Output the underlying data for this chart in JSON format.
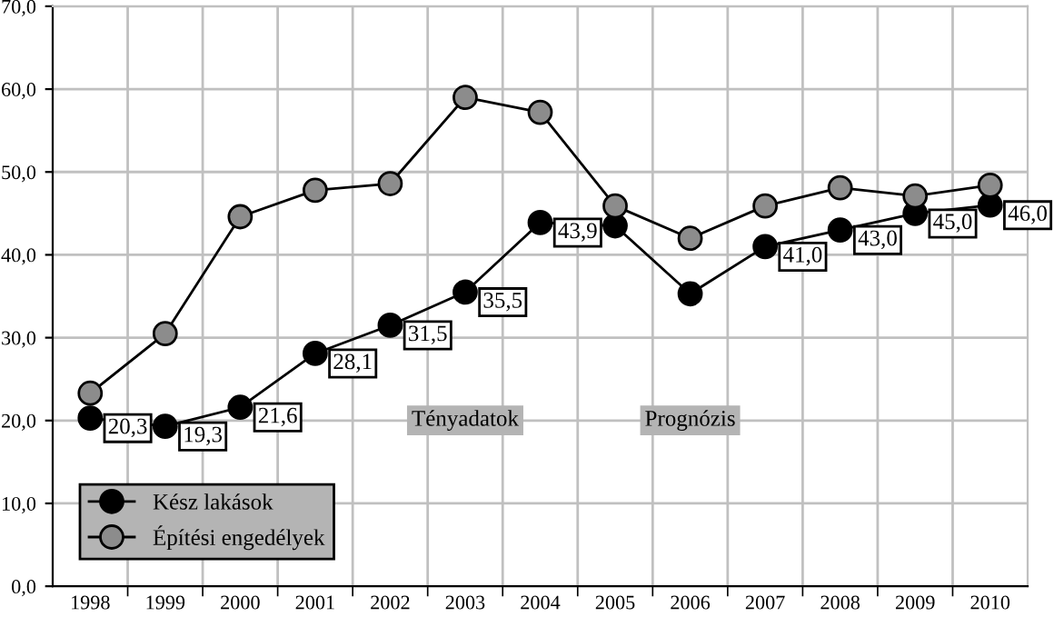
{
  "chart_data": {
    "type": "line",
    "categories": [
      "1998",
      "1999",
      "2000",
      "2001",
      "2002",
      "2003",
      "2004",
      "2005",
      "2006",
      "2007",
      "2008",
      "2009",
      "2010"
    ],
    "series": [
      {
        "name": "Kész lakások",
        "color": "#000000",
        "values": [
          20.3,
          19.3,
          21.6,
          28.1,
          31.5,
          35.5,
          43.9,
          43.5,
          35.3,
          41.0,
          43.0,
          45.0,
          46.0
        ],
        "value_labels": [
          "20,3",
          "19,3",
          "21,6",
          "28,1",
          "31,5",
          "35,5",
          "43,9",
          null,
          null,
          "41,0",
          "43,0",
          "45,0",
          "46,0"
        ]
      },
      {
        "name": "Építési engedélyek",
        "color": "#8c8c8c",
        "values": [
          23.3,
          30.5,
          44.6,
          47.8,
          48.6,
          59.0,
          57.2,
          45.9,
          42.0,
          45.9,
          48.1,
          47.1,
          48.4
        ]
      }
    ],
    "ylim": [
      0,
      70
    ],
    "yticks": [
      {
        "value": 0,
        "label": "0,0"
      },
      {
        "value": 10,
        "label": "10,0"
      },
      {
        "value": 20,
        "label": "20,0"
      },
      {
        "value": 30,
        "label": "30,0"
      },
      {
        "value": 40,
        "label": "40,0"
      },
      {
        "value": 50,
        "label": "50,0"
      },
      {
        "value": 60,
        "label": "60,0"
      },
      {
        "value": 70,
        "label": "70,0"
      }
    ],
    "annotations": [
      "Tényadatok",
      "Prognózis"
    ],
    "grid": true,
    "legend": "bottom left",
    "marker": "circle",
    "line_style": "solid"
  }
}
